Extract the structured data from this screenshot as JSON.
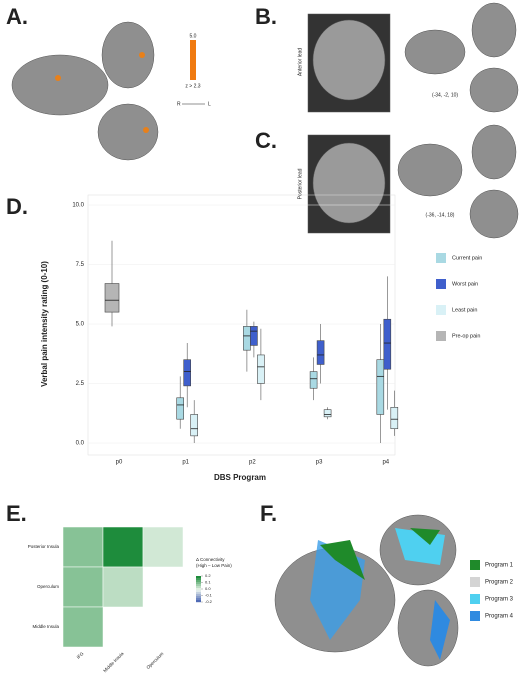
{
  "panels": {
    "a": "A.",
    "b": "B.",
    "c": "C.",
    "d": "D.",
    "e": "E.",
    "f": "F."
  },
  "panel_a": {
    "scale_max": "5.0",
    "scale_min": "z > 2.3",
    "right": "R",
    "left": "L"
  },
  "panel_b": {
    "lead": "Anterior lead",
    "coords": "(-34, -2, 10)"
  },
  "panel_c": {
    "lead": "Posterior lead",
    "coords": "(-36, -14, 18)"
  },
  "panel_f": {
    "legend": [
      {
        "name": "Program 1",
        "color": "#1f8a2a"
      },
      {
        "name": "Program 2",
        "color": "#d4d4d4"
      },
      {
        "name": "Program 3",
        "color": "#4fd0f0"
      },
      {
        "name": "Program 4",
        "color": "#2f8ae0"
      }
    ]
  },
  "chart_data": [
    {
      "type": "box",
      "x_label": "DBS Program",
      "y_label": "Verbal pain intensity rating (0-10)",
      "categories": [
        "p0",
        "p1",
        "p2",
        "p3",
        "p4"
      ],
      "ylim": [
        0,
        10
      ],
      "yticks": [
        {
          "value": 0,
          "label": "0.0"
        },
        2.5,
        {
          "value": 5,
          "label": "5.0"
        },
        7.5,
        {
          "value": 10,
          "label": "10.0"
        }
      ],
      "series": [
        {
          "name": "Current pain",
          "color": "#a9d9e3",
          "values": [
            null,
            [
              0.6,
              1.0,
              1.6,
              1.9,
              2.8
            ],
            [
              3.0,
              3.9,
              4.5,
              4.9,
              5.6
            ],
            [
              1.8,
              2.3,
              2.7,
              3.0,
              3.6
            ],
            [
              0,
              1.2,
              2.8,
              3.5,
              5.0
            ]
          ]
        },
        {
          "name": "Worst pain",
          "color": "#3f5fcc",
          "values": [
            null,
            [
              1.5,
              2.4,
              3.0,
              3.5,
              4.2
            ],
            [
              3.6,
              4.1,
              4.7,
              4.9,
              5.1
            ],
            [
              2.5,
              3.3,
              3.7,
              4.3,
              5.0
            ],
            [
              1.4,
              3.1,
              4.2,
              5.2,
              7.0
            ]
          ]
        },
        {
          "name": "Least pain",
          "color": "#d9f1f6",
          "values": [
            null,
            [
              0,
              0.3,
              0.6,
              1.2,
              1.8
            ],
            [
              1.8,
              2.5,
              3.2,
              3.7,
              4.8
            ],
            [
              1.0,
              1.1,
              1.2,
              1.4,
              1.5
            ],
            [
              0.3,
              0.6,
              1.0,
              1.5,
              2.2
            ]
          ]
        },
        {
          "name": "Pre-op pain",
          "color": "#b5b5b5",
          "values": [
            [
              4.9,
              5.5,
              6.0,
              6.7,
              8.5
            ],
            null,
            null,
            null,
            null
          ]
        }
      ]
    },
    {
      "type": "heatmap",
      "legend_title": "Δ Connectivity\n(High – Low Pain)",
      "rows": [
        "Posterior Insula",
        "Operculum",
        "Middle Insula"
      ],
      "columns": [
        "IFG",
        "Middle Insula",
        "Operculum"
      ],
      "values": [
        [
          0.1,
          0.2,
          0.03
        ],
        [
          0.1,
          0.05,
          null
        ],
        [
          0.1,
          null,
          null
        ]
      ],
      "clim": [
        -0.2,
        0.2
      ],
      "cticks": [
        0.2,
        0.1,
        {
          "value": 0,
          "label": "0.0"
        },
        -0.1,
        -0.2
      ]
    }
  ]
}
